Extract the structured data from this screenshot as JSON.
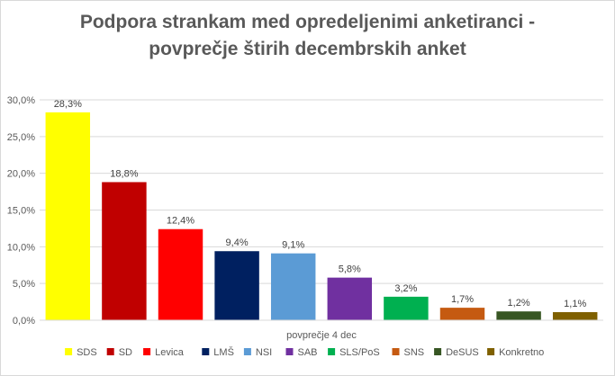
{
  "chart_data": {
    "type": "bar",
    "title": "Podpora strankam med opredeljenimi anketiranci - povprečje štirih decembrskih anket",
    "title_lines": [
      "Podpora strankam med opredeljenimi anketiranci -",
      "povprečje štirih decembrskih anket"
    ],
    "xlabel": "povprečje 4 dec",
    "ylabel": "",
    "ylim": [
      0,
      30
    ],
    "yticks": [
      0,
      5,
      10,
      15,
      20,
      25,
      30
    ],
    "ytick_labels": [
      "0,0%",
      "5,0%",
      "10,0%",
      "15,0%",
      "20,0%",
      "25,0%",
      "30,0%"
    ],
    "grid": true,
    "legend_position": "bottom",
    "categories": [
      "SDS",
      "SD",
      "Levica",
      "LMŠ",
      "NSI",
      "SAB",
      "SLS/PoS",
      "SNS",
      "DeSUS",
      "Konkretno"
    ],
    "values": [
      28.3,
      18.8,
      12.4,
      9.4,
      9.1,
      5.8,
      3.2,
      1.7,
      1.2,
      1.1
    ],
    "value_labels": [
      "28,3%",
      "18,8%",
      "12,4%",
      "9,4%",
      "9,1%",
      "5,8%",
      "3,2%",
      "1,7%",
      "1,2%",
      "1,1%"
    ],
    "colors": [
      "#ffff00",
      "#c00000",
      "#ff0000",
      "#002060",
      "#5b9bd5",
      "#7030a0",
      "#00b050",
      "#c55a11",
      "#375623",
      "#7f6000"
    ]
  }
}
